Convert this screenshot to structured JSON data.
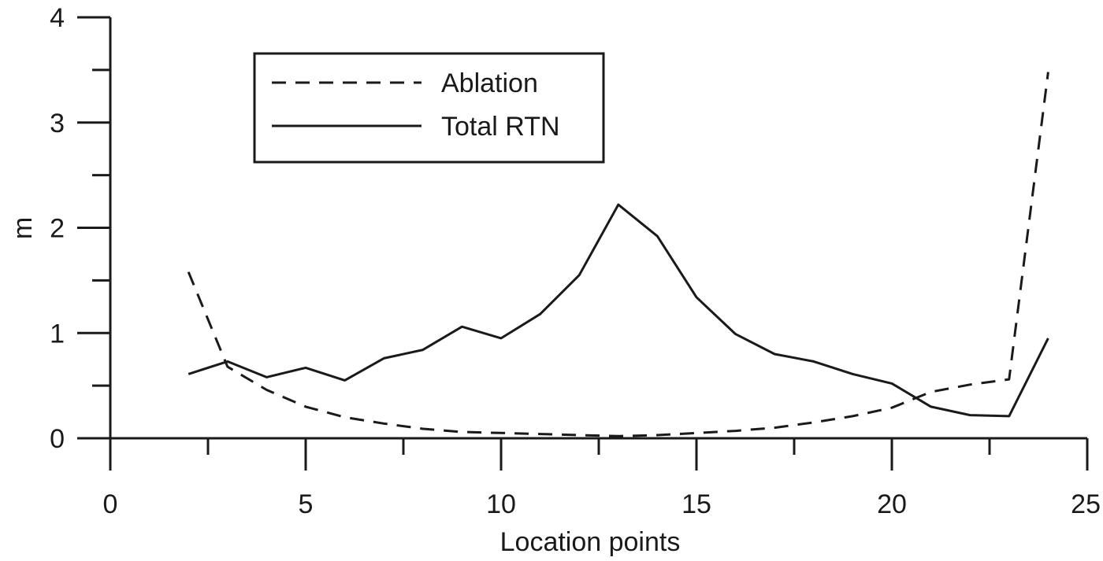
{
  "chart_data": {
    "type": "line",
    "title": "",
    "xlabel": "Location points",
    "ylabel": "m",
    "xlim": [
      0,
      25
    ],
    "ylim": [
      0,
      4
    ],
    "x_ticks": [
      0,
      5,
      10,
      15,
      20,
      25
    ],
    "y_ticks": [
      0,
      1,
      2,
      3,
      4
    ],
    "grid": false,
    "legend_position": "top-left",
    "series": [
      {
        "name": "Ablation",
        "style": "dashed",
        "x": [
          2,
          3,
          4,
          5,
          6,
          7,
          8,
          9,
          10,
          11,
          12,
          13,
          14,
          15,
          16,
          17,
          18,
          19,
          20,
          21,
          22,
          23,
          24
        ],
        "y": [
          1.58,
          0.68,
          0.46,
          0.3,
          0.2,
          0.14,
          0.09,
          0.06,
          0.05,
          0.04,
          0.03,
          0.02,
          0.03,
          0.05,
          0.07,
          0.1,
          0.15,
          0.21,
          0.29,
          0.44,
          0.51,
          0.56,
          3.48
        ]
      },
      {
        "name": "Total RTN",
        "style": "solid",
        "x": [
          2,
          3,
          4,
          5,
          6,
          7,
          8,
          9,
          10,
          11,
          12,
          13,
          14,
          15,
          16,
          17,
          18,
          19,
          20,
          21,
          22,
          23,
          24
        ],
        "y": [
          0.61,
          0.73,
          0.58,
          0.67,
          0.55,
          0.76,
          0.84,
          1.06,
          0.95,
          1.18,
          1.55,
          2.22,
          1.92,
          1.34,
          0.99,
          0.8,
          0.73,
          0.61,
          0.52,
          0.3,
          0.22,
          0.21,
          0.95
        ]
      }
    ]
  }
}
